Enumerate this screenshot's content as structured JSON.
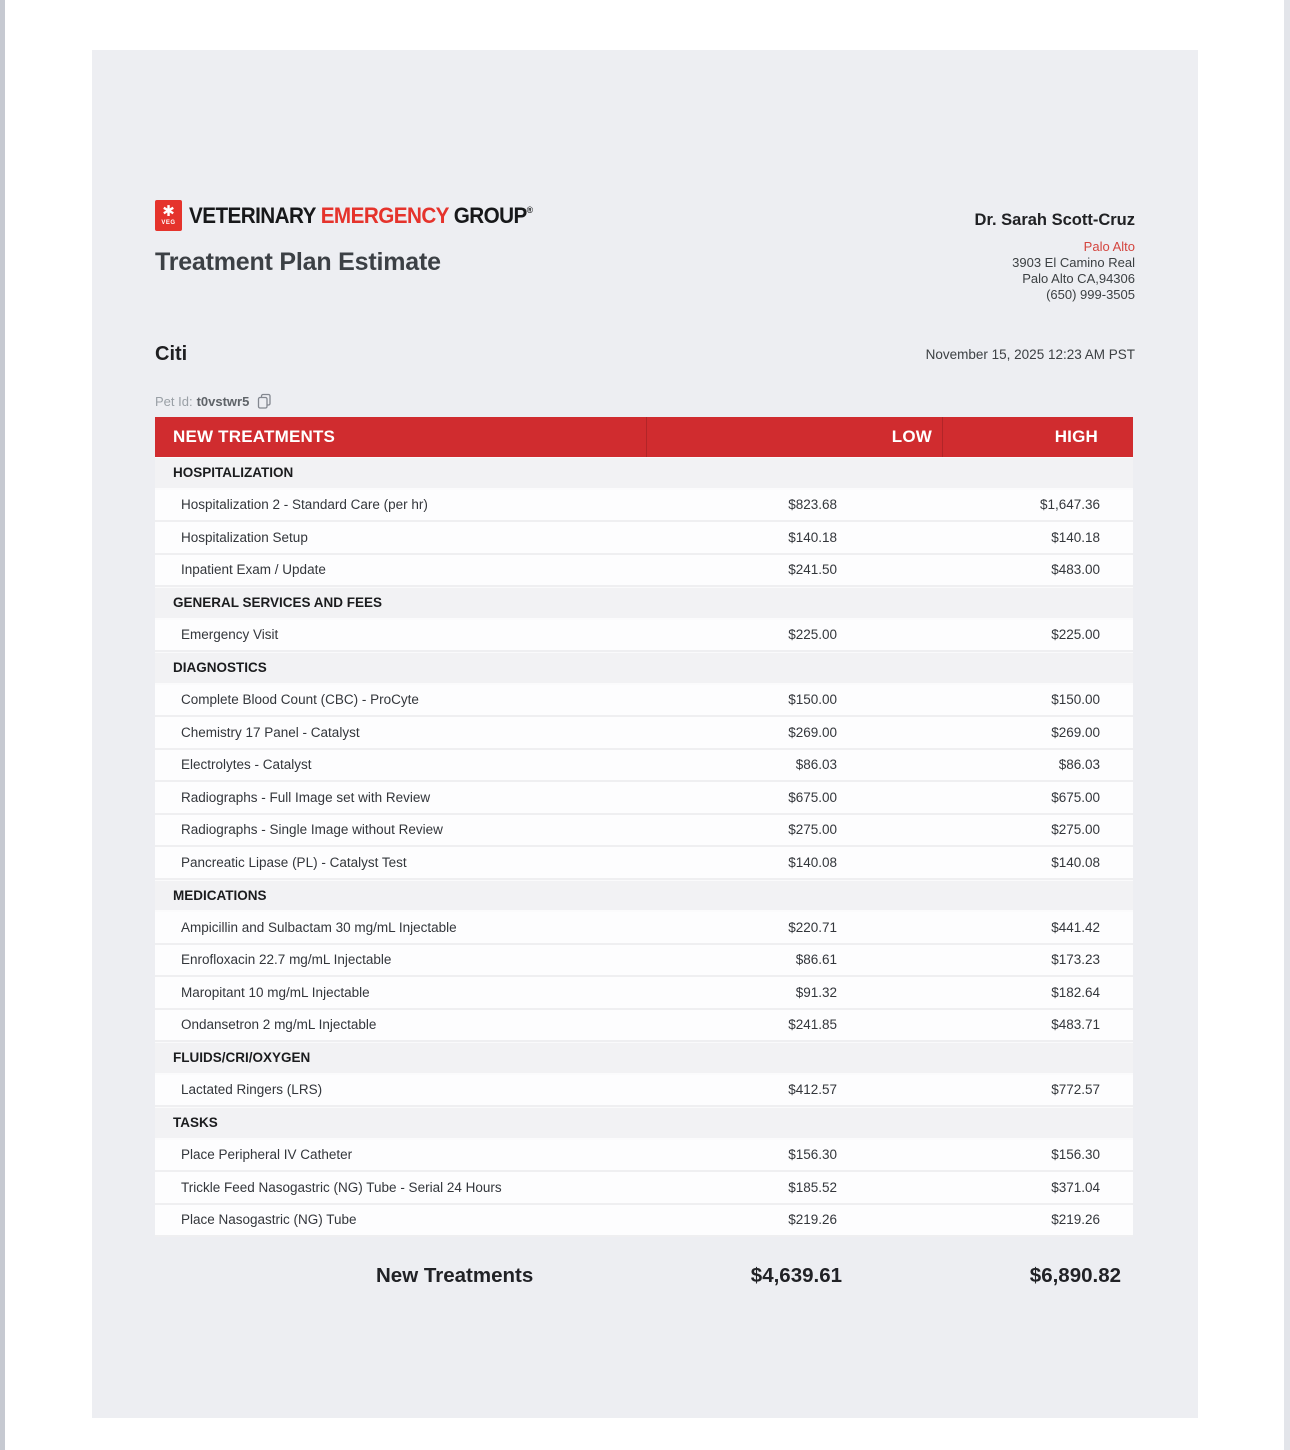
{
  "colors": {
    "brand_red": "#E5332C",
    "header_red": "#D02C2F",
    "location_red": "#D4453F",
    "panel_bg": "#EDEEF2",
    "section_bg": "#F2F2F4"
  },
  "logo": {
    "word1": "VETERINARY",
    "word2": "EMERGENCY",
    "word3": "GROUP",
    "reg_mark": "®",
    "icon_glyph": "✱",
    "icon_text": "VEG"
  },
  "header": {
    "doc_title": "Treatment Plan Estimate",
    "doctor": "Dr. Sarah Scott-Cruz",
    "location": "Palo Alto",
    "address_lines": [
      "3903 El Camino Real",
      "Palo Alto CA,94306",
      "(650) 999-3505"
    ]
  },
  "patient": {
    "name": "Citi",
    "date": "November 15, 2025 12:23 AM PST",
    "pet_id_label": "Pet Id:",
    "pet_id": "t0vstwr5"
  },
  "table": {
    "title": "NEW TREATMENTS",
    "col_low": "LOW",
    "col_high": "HIGH",
    "sections": [
      {
        "name": "HOSPITALIZATION",
        "items": [
          {
            "name": "Hospitalization 2 - Standard Care (per hr)",
            "low": "$823.68",
            "high": "$1,647.36"
          },
          {
            "name": "Hospitalization Setup",
            "low": "$140.18",
            "high": "$140.18"
          },
          {
            "name": "Inpatient Exam / Update",
            "low": "$241.50",
            "high": "$483.00"
          }
        ]
      },
      {
        "name": "GENERAL SERVICES AND FEES",
        "items": [
          {
            "name": "Emergency Visit",
            "low": "$225.00",
            "high": "$225.00"
          }
        ]
      },
      {
        "name": "DIAGNOSTICS",
        "items": [
          {
            "name": "Complete Blood Count (CBC) - ProCyte",
            "low": "$150.00",
            "high": "$150.00"
          },
          {
            "name": "Chemistry 17 Panel - Catalyst",
            "low": "$269.00",
            "high": "$269.00"
          },
          {
            "name": "Electrolytes - Catalyst",
            "low": "$86.03",
            "high": "$86.03"
          },
          {
            "name": "Radiographs - Full Image set with Review",
            "low": "$675.00",
            "high": "$675.00"
          },
          {
            "name": "Radiographs - Single Image without Review",
            "low": "$275.00",
            "high": "$275.00"
          },
          {
            "name": "Pancreatic Lipase (PL) - Catalyst Test",
            "low": "$140.08",
            "high": "$140.08"
          }
        ]
      },
      {
        "name": "MEDICATIONS",
        "items": [
          {
            "name": "Ampicillin and Sulbactam 30 mg/mL Injectable",
            "low": "$220.71",
            "high": "$441.42"
          },
          {
            "name": "Enrofloxacin 22.7 mg/mL Injectable",
            "low": "$86.61",
            "high": "$173.23"
          },
          {
            "name": "Maropitant 10 mg/mL Injectable",
            "low": "$91.32",
            "high": "$182.64"
          },
          {
            "name": "Ondansetron 2 mg/mL Injectable",
            "low": "$241.85",
            "high": "$483.71"
          }
        ]
      },
      {
        "name": "FLUIDS/CRI/OXYGEN",
        "items": [
          {
            "name": "Lactated Ringers (LRS)",
            "low": "$412.57",
            "high": "$772.57"
          }
        ]
      },
      {
        "name": "TASKS",
        "items": [
          {
            "name": "Place Peripheral IV Catheter",
            "low": "$156.30",
            "high": "$156.30"
          },
          {
            "name": "Trickle Feed Nasogastric (NG) Tube - Serial 24 Hours",
            "low": "$185.52",
            "high": "$371.04"
          },
          {
            "name": "Place Nasogastric (NG) Tube",
            "low": "$219.26",
            "high": "$219.26"
          }
        ]
      }
    ]
  },
  "totals": {
    "label": "New Treatments",
    "low": "$4,639.61",
    "high": "$6,890.82"
  }
}
